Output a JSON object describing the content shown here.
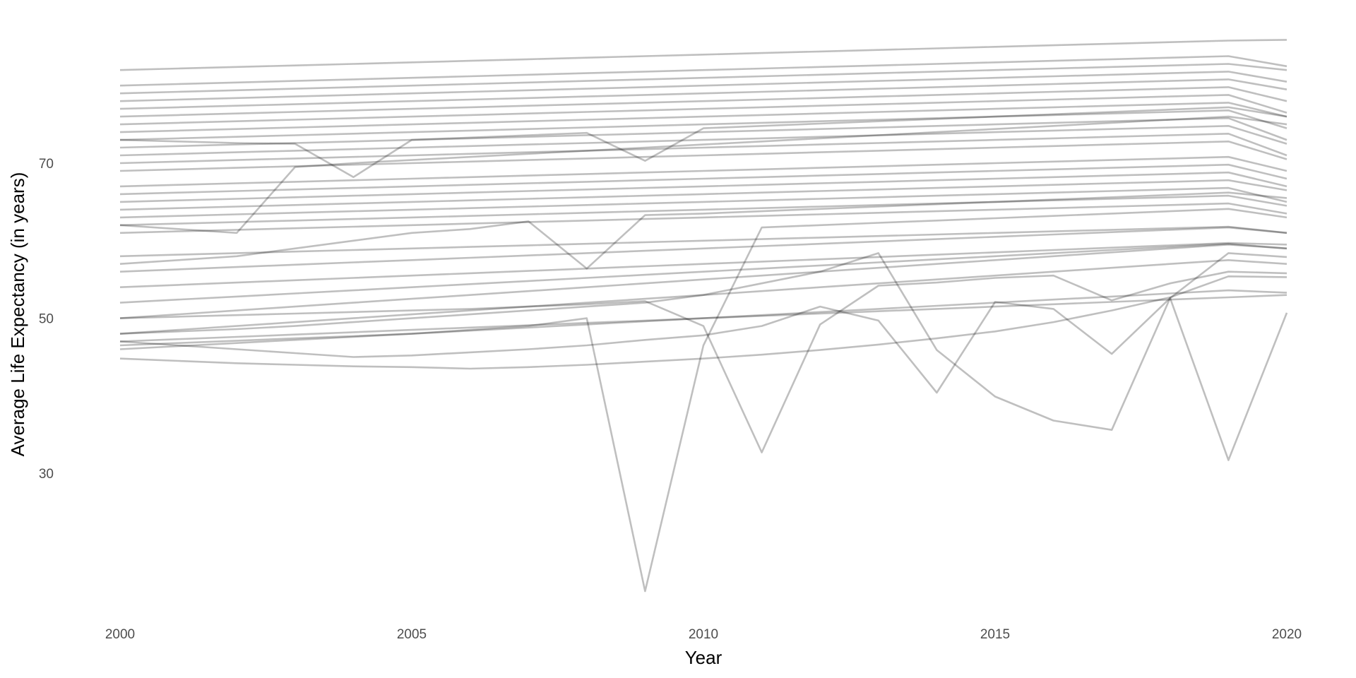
{
  "chart_data": {
    "type": "line",
    "title": "",
    "xlabel": "Year",
    "ylabel": "Average Life Expectancy (in years)",
    "x": [
      2000,
      2001,
      2002,
      2003,
      2004,
      2005,
      2006,
      2007,
      2008,
      2009,
      2010,
      2011,
      2012,
      2013,
      2014,
      2015,
      2016,
      2017,
      2018,
      2019,
      2020
    ],
    "xticks": [
      2000,
      2005,
      2010,
      2015,
      2020
    ],
    "yticks": [
      30,
      50,
      70
    ],
    "xlim": [
      2000,
      2020
    ],
    "ylim": [
      13,
      87.5
    ],
    "grid": false,
    "legend": "none",
    "line_color": "#000000",
    "series": [
      {
        "values": [
          82.0,
          82.2,
          82.4,
          82.6,
          82.8,
          83.0,
          83.2,
          83.4,
          83.6,
          83.8,
          84.0,
          84.2,
          84.4,
          84.6,
          84.8,
          85.0,
          85.2,
          85.4,
          85.6,
          85.8,
          85.9
        ]
      },
      {
        "values": [
          80.0,
          80.2,
          80.4,
          80.6,
          80.8,
          81.0,
          81.2,
          81.4,
          81.6,
          81.8,
          82.0,
          82.2,
          82.4,
          82.6,
          82.8,
          83.0,
          83.2,
          83.4,
          83.6,
          83.8,
          82.5
        ]
      },
      {
        "values": [
          79.0,
          79.2,
          79.4,
          79.6,
          79.8,
          80.0,
          80.2,
          80.4,
          80.6,
          80.8,
          81.0,
          81.2,
          81.4,
          81.6,
          81.8,
          82.0,
          82.2,
          82.4,
          82.6,
          82.8,
          82.0
        ]
      },
      {
        "values": [
          78.0,
          78.2,
          78.4,
          78.6,
          78.8,
          79.0,
          79.2,
          79.4,
          79.6,
          79.8,
          80.0,
          80.2,
          80.4,
          80.6,
          80.8,
          81.0,
          81.2,
          81.4,
          81.6,
          81.8,
          80.5
        ]
      },
      {
        "values": [
          77.0,
          77.2,
          77.4,
          77.6,
          77.8,
          78.0,
          78.2,
          78.4,
          78.6,
          78.8,
          79.0,
          79.2,
          79.4,
          79.6,
          79.8,
          80.0,
          80.2,
          80.4,
          80.6,
          80.8,
          79.5
        ]
      },
      {
        "values": [
          76.0,
          76.2,
          76.4,
          76.6,
          76.8,
          77.0,
          77.2,
          77.4,
          77.6,
          77.8,
          78.0,
          78.2,
          78.4,
          78.6,
          78.8,
          79.0,
          79.2,
          79.4,
          79.6,
          79.8,
          78.0
        ]
      },
      {
        "values": [
          75.0,
          75.2,
          75.4,
          75.6,
          75.8,
          76.0,
          76.2,
          76.4,
          76.6,
          76.8,
          77.0,
          77.2,
          77.4,
          77.6,
          77.8,
          78.0,
          78.2,
          78.4,
          78.6,
          78.8,
          76.5
        ]
      },
      {
        "values": [
          74.0,
          74.2,
          74.4,
          74.6,
          74.8,
          75.0,
          75.2,
          75.4,
          75.6,
          75.8,
          76.0,
          76.2,
          76.4,
          76.6,
          76.8,
          77.0,
          77.2,
          77.4,
          77.6,
          77.8,
          76.0
        ]
      },
      {
        "values": [
          73.0,
          73.2,
          73.4,
          73.6,
          73.8,
          74.0,
          74.2,
          74.4,
          74.6,
          74.8,
          75.0,
          75.2,
          75.4,
          75.6,
          75.8,
          76.0,
          76.2,
          76.4,
          76.6,
          76.8,
          74.5
        ]
      },
      {
        "values": [
          72.0,
          72.2,
          72.4,
          72.6,
          72.8,
          73.0,
          73.2,
          73.4,
          73.6,
          73.8,
          74.0,
          74.2,
          74.4,
          74.6,
          74.8,
          75.0,
          75.2,
          75.4,
          75.6,
          75.8,
          73.0
        ]
      },
      {
        "values": [
          71.0,
          71.2,
          71.4,
          71.6,
          71.8,
          72.0,
          72.2,
          72.4,
          72.6,
          72.8,
          73.0,
          73.2,
          73.4,
          73.6,
          73.8,
          74.0,
          74.2,
          74.4,
          74.6,
          74.8,
          72.5
        ]
      },
      {
        "values": [
          70.0,
          70.2,
          70.4,
          70.6,
          70.8,
          71.0,
          71.2,
          71.4,
          71.6,
          71.8,
          72.0,
          72.2,
          72.4,
          72.6,
          72.8,
          73.0,
          73.2,
          73.4,
          73.6,
          73.8,
          71.0
        ]
      },
      {
        "values": [
          69.0,
          69.2,
          69.4,
          69.6,
          69.8,
          70.0,
          70.2,
          70.4,
          70.6,
          70.8,
          71.0,
          71.2,
          71.4,
          71.6,
          71.8,
          72.0,
          72.2,
          72.4,
          72.6,
          72.8,
          70.5
        ]
      },
      {
        "values": [
          67.0,
          67.2,
          67.4,
          67.6,
          67.8,
          68.0,
          68.2,
          68.4,
          68.6,
          68.8,
          69.0,
          69.2,
          69.4,
          69.6,
          69.8,
          70.0,
          70.2,
          70.4,
          70.6,
          70.8,
          69.0
        ]
      },
      {
        "values": [
          66.0,
          66.2,
          66.4,
          66.6,
          66.8,
          67.0,
          67.2,
          67.4,
          67.6,
          67.8,
          68.0,
          68.2,
          68.4,
          68.6,
          68.8,
          69.0,
          69.2,
          69.4,
          69.6,
          69.8,
          68.0
        ]
      },
      {
        "values": [
          65.0,
          65.2,
          65.4,
          65.6,
          65.8,
          66.0,
          66.2,
          66.4,
          66.6,
          66.8,
          67.0,
          67.2,
          67.4,
          67.6,
          67.8,
          68.0,
          68.2,
          68.4,
          68.6,
          68.8,
          67.0
        ]
      },
      {
        "values": [
          64.0,
          64.2,
          64.4,
          64.6,
          64.8,
          65.0,
          65.2,
          65.4,
          65.6,
          65.8,
          66.0,
          66.2,
          66.4,
          66.6,
          66.8,
          67.0,
          67.2,
          67.4,
          67.6,
          67.8,
          66.5
        ]
      },
      {
        "values": [
          63.0,
          63.2,
          63.4,
          63.6,
          63.8,
          64.0,
          64.2,
          64.4,
          64.6,
          64.8,
          65.0,
          65.2,
          65.4,
          65.6,
          65.8,
          66.0,
          66.2,
          66.4,
          66.6,
          66.8,
          65.0
        ]
      },
      {
        "values": [
          62.0,
          62.2,
          62.4,
          62.6,
          62.8,
          63.0,
          63.2,
          63.4,
          63.6,
          63.8,
          64.0,
          64.2,
          64.4,
          64.6,
          64.8,
          65.0,
          65.2,
          65.4,
          65.6,
          65.8,
          64.5
        ]
      },
      {
        "values": [
          61.0,
          61.2,
          61.4,
          61.6,
          61.8,
          62.0,
          62.2,
          62.4,
          62.6,
          62.8,
          63.0,
          63.2,
          63.4,
          63.6,
          63.8,
          64.0,
          64.2,
          64.4,
          64.6,
          64.8,
          63.5
        ]
      },
      {
        "values": [
          58.0,
          58.2,
          58.4,
          58.6,
          58.8,
          59.0,
          59.2,
          59.4,
          59.6,
          59.8,
          60.0,
          60.2,
          60.4,
          60.6,
          60.8,
          61.0,
          61.2,
          61.4,
          61.6,
          61.8,
          61.0
        ]
      },
      {
        "values": [
          56.0,
          56.3,
          56.6,
          56.9,
          57.2,
          57.5,
          57.8,
          58.1,
          58.4,
          58.7,
          59.0,
          59.3,
          59.6,
          59.9,
          60.2,
          60.5,
          60.8,
          61.1,
          61.4,
          61.7,
          61.0
        ]
      },
      {
        "values": [
          54.0,
          54.3,
          54.6,
          54.9,
          55.2,
          55.5,
          55.8,
          56.1,
          56.4,
          56.7,
          57.0,
          57.3,
          57.6,
          57.9,
          58.2,
          58.5,
          58.8,
          59.1,
          59.4,
          59.7,
          59.5
        ]
      },
      {
        "values": [
          52.0,
          52.4,
          52.8,
          53.2,
          53.6,
          54.0,
          54.4,
          54.8,
          55.2,
          55.6,
          56.0,
          56.4,
          56.8,
          57.2,
          57.6,
          58.0,
          58.4,
          58.8,
          59.2,
          59.6,
          59.0
        ]
      },
      {
        "values": [
          50.0,
          50.5,
          51.0,
          51.5,
          52.0,
          52.5,
          53.0,
          53.5,
          54.0,
          54.5,
          55.0,
          55.5,
          56.0,
          56.5,
          57.0,
          57.5,
          58.0,
          58.5,
          59.0,
          59.5,
          59.0
        ]
      },
      {
        "values": [
          48.0,
          48.5,
          49.0,
          49.5,
          50.0,
          50.5,
          51.0,
          51.5,
          52.0,
          52.5,
          53.0,
          53.5,
          54.0,
          54.5,
          55.0,
          55.5,
          56.0,
          56.5,
          57.0,
          57.5,
          57.0
        ]
      },
      {
        "values": [
          47.0,
          47.3,
          47.6,
          47.9,
          48.2,
          48.5,
          48.8,
          49.1,
          49.4,
          49.7,
          50.0,
          50.3,
          50.6,
          50.9,
          51.2,
          51.5,
          51.8,
          52.1,
          52.4,
          52.7,
          53.0
        ]
      },
      {
        "values": [
          46.0,
          46.4,
          46.8,
          47.2,
          47.6,
          48.0,
          48.4,
          48.8,
          49.2,
          49.6,
          50.0,
          50.4,
          50.8,
          51.2,
          51.6,
          52.0,
          52.4,
          52.8,
          53.2,
          53.6,
          53.3
        ]
      },
      {
        "values": [
          44.8,
          44.5,
          44.2,
          44.0,
          43.8,
          43.7,
          43.5,
          43.7,
          44.0,
          44.4,
          44.8,
          45.3,
          45.9,
          46.6,
          47.4,
          48.3,
          49.5,
          51.0,
          52.7,
          55.4,
          55.3
        ]
      },
      {
        "values": [
          62.0,
          61.5,
          61.0,
          69.5,
          70.0,
          70.4,
          70.8,
          71.2,
          71.6,
          72.0,
          72.4,
          72.8,
          73.2,
          73.6,
          74.0,
          74.4,
          74.8,
          75.2,
          75.6,
          76.0,
          75.0
        ]
      },
      {
        "values": [
          73.0,
          72.8,
          72.6,
          72.5,
          68.2,
          73.0,
          73.3,
          73.6,
          73.9,
          70.3,
          74.5,
          74.8,
          75.1,
          75.4,
          75.7,
          76.0,
          76.3,
          76.6,
          76.9,
          77.2,
          76.0
        ]
      },
      {
        "values": [
          57.0,
          57.5,
          58.0,
          59.0,
          60.0,
          61.0,
          61.5,
          62.5,
          56.4,
          63.3,
          63.5,
          63.8,
          64.1,
          64.4,
          64.7,
          65.0,
          65.3,
          65.6,
          65.9,
          66.2,
          65.5
        ]
      },
      {
        "values": [
          46.5,
          46.8,
          47.1,
          47.4,
          47.7,
          48.0,
          48.5,
          49.0,
          50.0,
          14.8,
          46.5,
          61.7,
          62.0,
          62.3,
          62.6,
          62.9,
          63.2,
          63.5,
          63.8,
          64.1,
          63.0
        ]
      },
      {
        "values": [
          50.0,
          50.2,
          50.4,
          50.6,
          50.8,
          51.0,
          51.2,
          51.5,
          51.8,
          52.2,
          49.0,
          32.7,
          49.2,
          54.2,
          54.6,
          55.2,
          55.5,
          52.3,
          54.5,
          56.0,
          55.8
        ]
      },
      {
        "values": [
          47.0,
          46.5,
          46.0,
          45.5,
          45.0,
          45.2,
          45.6,
          46.0,
          46.5,
          47.2,
          47.8,
          49.0,
          51.5,
          49.7,
          40.4,
          52.1,
          51.2,
          45.4,
          52.6,
          31.7,
          50.7
        ]
      },
      {
        "values": [
          48.0,
          48.3,
          48.6,
          49.0,
          49.5,
          50.0,
          50.5,
          51.0,
          51.5,
          52.0,
          53.0,
          54.5,
          56.0,
          58.4,
          45.9,
          39.9,
          36.8,
          35.6,
          52.6,
          58.4,
          57.9
        ]
      }
    ]
  }
}
